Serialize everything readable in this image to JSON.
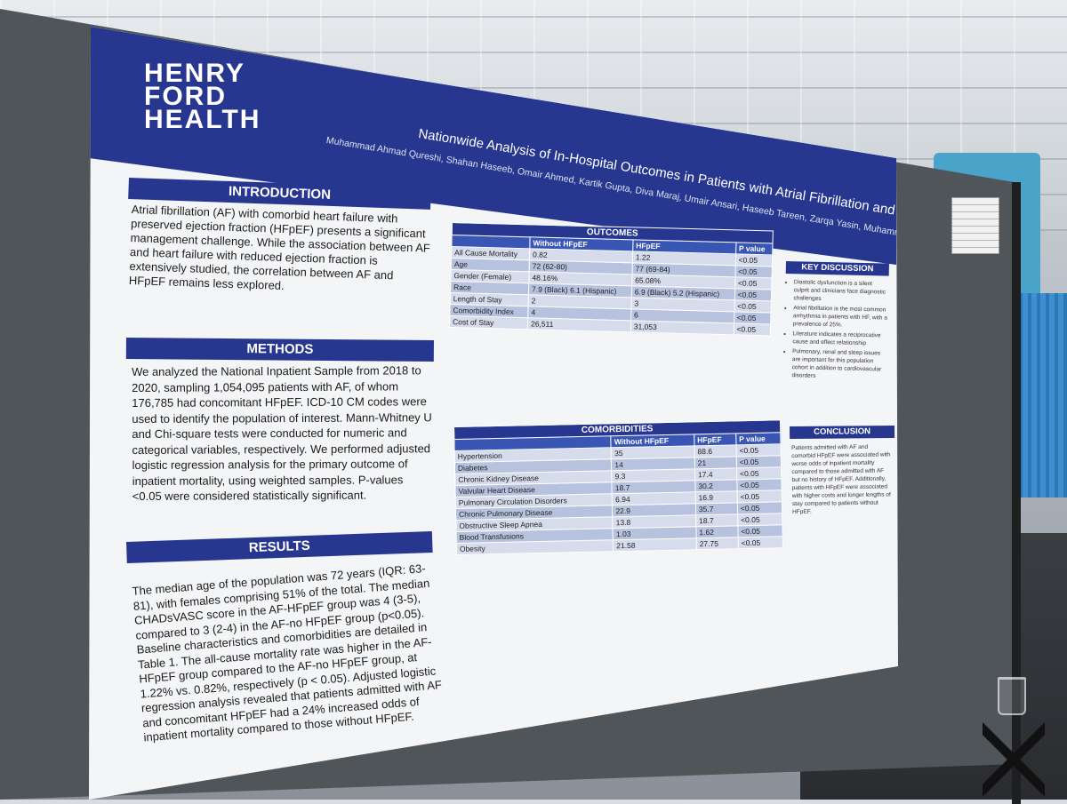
{
  "poster": {
    "logo_lines": [
      "HENRY",
      "FORD",
      "HEALTH"
    ],
    "title": "Nationwide Analysis of In-Hospital Outcomes in Patients with Atrial Fibrillation and HFpEF",
    "authors": "Muhammad Ahmad Qureshi, Shahan Haseeb, Omair Ahmed, Kartik Gupta, Diva Maraj, Umair Ansari, Haseeb Tareen, Zarqa Yasin, Muhammad Zulqarnain",
    "introduction": {
      "heading": "INTRODUCTION",
      "text": "Atrial fibrillation (AF) with comorbid heart failure with preserved ejection fraction (HFpEF) presents a significant management challenge. While the association between AF and heart failure with reduced ejection fraction is extensively studied, the correlation between AF and HFpEF remains less explored."
    },
    "methods": {
      "heading": "METHODS",
      "text": "We analyzed the National Inpatient Sample from 2018 to 2020, sampling 1,054,095 patients with AF, of whom 176,785 had concomitant HFpEF. ICD-10 CM codes were used to identify the population of interest. Mann-Whitney U and Chi-square tests were conducted for numeric and categorical variables, respectively. We performed adjusted logistic regression analysis for the primary outcome of inpatient mortality, using weighted samples. P-values <0.05 were considered statistically significant."
    },
    "results": {
      "heading": "RESULTS",
      "text": "The median age of the population was 72 years (IQR: 63-81), with females comprising 51% of the total. The median CHADsVASC score in the AF-HFpEF group was 4 (3-5), compared to 3 (2-4) in the AF-no HFpEF group (p<0.05). Baseline characteristics and comorbidities are detailed in Table 1. The all-cause mortality rate was higher in the AF-HFpEF group compared to the AF-no HFpEF group, at 1.22% vs. 0.82%, respectively (p < 0.05). Adjusted logistic regression analysis revealed that patients admitted with AF and concomitant HFpEF had a 24% increased odds of inpatient mortality compared to those without HFpEF."
    },
    "outcomes_table": {
      "caption": "OUTCOMES",
      "headers": [
        "",
        "Without HFpEF",
        "HFpEF",
        "P value"
      ],
      "rows": [
        [
          "All Cause Mortality",
          "0.82",
          "1.22",
          "<0.05"
        ],
        [
          "Age",
          "72 (62-80)",
          "77 (69-84)",
          "<0.05"
        ],
        [
          "Gender (Female)",
          "48.16%",
          "65.08%",
          "<0.05"
        ],
        [
          "Race",
          "7.9 (Black) 6.1 (Hispanic)",
          "6.9 (Black) 5.2 (Hispanic)",
          "<0.05"
        ],
        [
          "Length of Stay",
          "2",
          "3",
          "<0.05"
        ],
        [
          "Comorbidity Index",
          "4",
          "6",
          "<0.05"
        ],
        [
          "Cost of Stay",
          "26,511",
          "31,053",
          "<0.05"
        ]
      ]
    },
    "comorbidities_table": {
      "caption": "COMORBIDITIES",
      "headers": [
        "",
        "Without HFpEF",
        "HFpEF",
        "P value"
      ],
      "rows": [
        [
          "Hypertension",
          "35",
          "88.6",
          "<0.05"
        ],
        [
          "Diabetes",
          "14",
          "21",
          "<0.05"
        ],
        [
          "Chronic Kidney Disease",
          "9.3",
          "17.4",
          "<0.05"
        ],
        [
          "Valvular Heart Disease",
          "18.7",
          "30.2",
          "<0.05"
        ],
        [
          "Pulmonary Circulation Disorders",
          "6.94",
          "16.9",
          "<0.05"
        ],
        [
          "Chronic Pulmonary Disease",
          "22.9",
          "35.7",
          "<0.05"
        ],
        [
          "Obstructive Sleep Apnea",
          "13.8",
          "18.7",
          "<0.05"
        ],
        [
          "Blood Transfusions",
          "1.03",
          "1.62",
          "<0.05"
        ],
        [
          "Obesity",
          "21.58",
          "27.75",
          "<0.05"
        ]
      ]
    },
    "key_points": {
      "heading": "KEY DISCUSSION POINTS",
      "items": [
        "Diastolic dysfunction is a silent culprit and clinicians face diagnostic challenges",
        "Atrial fibrillation is the most common arrhythmia in patients with HF, with a prevalence of 25%.",
        "Literature indicates a reciprocative cause and effect relationship",
        "Pulmonary, renal and sleep issues are important for this population cohort in addition to cardiovascular disorders"
      ]
    },
    "conclusion": {
      "heading": "CONCLUSION",
      "text": "Patients admitted with AF and comorbid HFpEF were associated with worse odds of inpatient mortality compared to those admitted with AF but no history of HFpEF. Additionally, patients with HFpEF were associated with higher costs and longer lengths of stay compared to patients without HFpEF."
    }
  }
}
